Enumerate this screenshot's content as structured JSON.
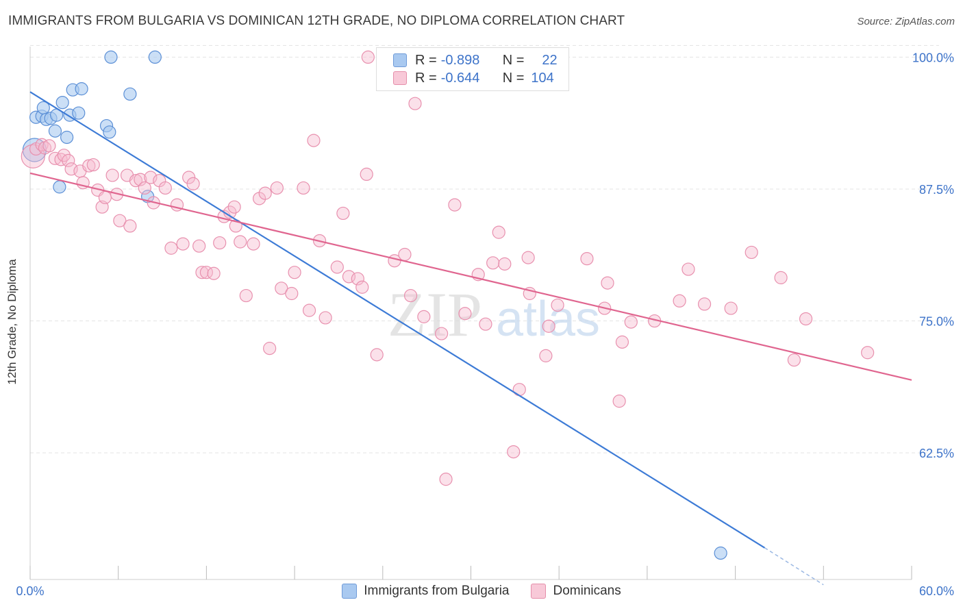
{
  "title": "IMMIGRANTS FROM BULGARIA VS DOMINICAN 12TH GRADE, NO DIPLOMA CORRELATION CHART",
  "source": "Source: ZipAtlas.com",
  "watermark": {
    "zip": "ZIP",
    "atlas": "atlas"
  },
  "legend_top": {
    "rows": [
      {
        "r_label": "R =",
        "r_value": "-0.898",
        "n_label": "N =",
        "n_value": "22"
      },
      {
        "r_label": "R =",
        "r_value": "-0.644",
        "n_label": "N =",
        "n_value": "104"
      }
    ]
  },
  "colors": {
    "blue": "#3d7bd6",
    "blue_fill": "#a9c9f0",
    "pink": "#e0658f",
    "pink_fill": "#f5b8cc",
    "axis_label": "#3d73c9",
    "grid": "#e3e3e3"
  },
  "chart_data": {
    "type": "scatter",
    "title": "IMMIGRANTS FROM BULGARIA VS DOMINICAN 12TH GRADE, NO DIPLOMA CORRELATION CHART",
    "xlabel": "",
    "ylabel": "12th Grade, No Diploma",
    "xlim": [
      0,
      60
    ],
    "ylim": [
      50.5,
      101
    ],
    "x_tick_labels": [
      "0.0%",
      "60.0%"
    ],
    "y_ticks": [
      62.5,
      75.0,
      87.5,
      100.0
    ],
    "y_tick_labels": [
      "62.5%",
      "75.0%",
      "87.5%",
      "100.0%"
    ],
    "grid": true,
    "legend_placement": "bottom",
    "series": [
      {
        "name": "Immigrants from Bulgaria",
        "color": "#3d7bd6",
        "points": [
          [
            0.4,
            94.3
          ],
          [
            0.8,
            94.4
          ],
          [
            0.9,
            95.2
          ],
          [
            1.1,
            94.1
          ],
          [
            1.4,
            94.2
          ],
          [
            1.7,
            93.0
          ],
          [
            1.8,
            94.5
          ],
          [
            2.0,
            87.7
          ],
          [
            2.2,
            95.7
          ],
          [
            2.5,
            92.4
          ],
          [
            2.7,
            94.5
          ],
          [
            2.9,
            96.9
          ],
          [
            3.3,
            94.7
          ],
          [
            3.5,
            97.0
          ],
          [
            5.2,
            93.5
          ],
          [
            5.4,
            92.9
          ],
          [
            5.5,
            100.0
          ],
          [
            6.8,
            96.5
          ],
          [
            8.0,
            86.8
          ],
          [
            8.5,
            100.0
          ],
          [
            47.0,
            53.0
          ],
          [
            0.3,
            91.2
          ]
        ],
        "trend": {
          "x": [
            0.0,
            50.0
          ],
          "y": [
            96.7,
            53.5
          ],
          "dashed_extension_to": [
            54.0,
            50.0
          ]
        }
      },
      {
        "name": "Dominicans",
        "color": "#e0658f",
        "points": [
          [
            0.2,
            90.6
          ],
          [
            0.4,
            91.3
          ],
          [
            0.8,
            91.7
          ],
          [
            1.0,
            91.4
          ],
          [
            1.3,
            91.6
          ],
          [
            1.7,
            90.4
          ],
          [
            2.1,
            90.3
          ],
          [
            2.3,
            90.7
          ],
          [
            2.6,
            90.2
          ],
          [
            2.8,
            89.4
          ],
          [
            3.4,
            89.2
          ],
          [
            3.6,
            88.1
          ],
          [
            4.0,
            89.7
          ],
          [
            4.3,
            89.8
          ],
          [
            4.6,
            87.4
          ],
          [
            4.9,
            85.8
          ],
          [
            5.1,
            86.7
          ],
          [
            5.6,
            88.8
          ],
          [
            5.9,
            87.0
          ],
          [
            6.1,
            84.5
          ],
          [
            6.6,
            88.8
          ],
          [
            6.8,
            84.0
          ],
          [
            7.2,
            88.3
          ],
          [
            7.5,
            88.4
          ],
          [
            7.8,
            87.6
          ],
          [
            8.2,
            88.6
          ],
          [
            8.4,
            86.2
          ],
          [
            8.8,
            88.3
          ],
          [
            9.2,
            87.6
          ],
          [
            9.6,
            81.9
          ],
          [
            10.0,
            86.0
          ],
          [
            10.4,
            82.3
          ],
          [
            10.8,
            88.6
          ],
          [
            11.1,
            88.0
          ],
          [
            11.5,
            82.1
          ],
          [
            11.7,
            79.6
          ],
          [
            12.0,
            79.6
          ],
          [
            12.5,
            79.5
          ],
          [
            12.9,
            82.4
          ],
          [
            13.2,
            84.9
          ],
          [
            13.6,
            85.3
          ],
          [
            13.9,
            85.8
          ],
          [
            14.0,
            84.0
          ],
          [
            14.3,
            82.5
          ],
          [
            14.7,
            77.4
          ],
          [
            15.2,
            82.3
          ],
          [
            15.6,
            86.6
          ],
          [
            16.0,
            87.1
          ],
          [
            16.3,
            72.4
          ],
          [
            16.8,
            87.6
          ],
          [
            17.1,
            78.1
          ],
          [
            17.8,
            77.6
          ],
          [
            18.0,
            79.6
          ],
          [
            18.6,
            87.6
          ],
          [
            19.0,
            76.0
          ],
          [
            19.3,
            92.1
          ],
          [
            19.7,
            82.6
          ],
          [
            20.1,
            75.3
          ],
          [
            20.9,
            80.1
          ],
          [
            21.3,
            85.2
          ],
          [
            21.7,
            79.2
          ],
          [
            22.3,
            79.0
          ],
          [
            22.6,
            78.2
          ],
          [
            22.9,
            88.9
          ],
          [
            23.0,
            100.0
          ],
          [
            23.6,
            71.8
          ],
          [
            24.2,
            100.0
          ],
          [
            24.8,
            80.7
          ],
          [
            25.5,
            81.3
          ],
          [
            25.9,
            77.4
          ],
          [
            26.2,
            95.6
          ],
          [
            26.8,
            75.4
          ],
          [
            28.0,
            73.8
          ],
          [
            28.3,
            60.0
          ],
          [
            28.9,
            86.0
          ],
          [
            29.6,
            75.7
          ],
          [
            30.5,
            79.4
          ],
          [
            31.0,
            74.7
          ],
          [
            31.5,
            80.5
          ],
          [
            31.9,
            83.4
          ],
          [
            32.3,
            80.4
          ],
          [
            32.9,
            62.6
          ],
          [
            33.3,
            68.5
          ],
          [
            33.9,
            81.0
          ],
          [
            34.0,
            77.6
          ],
          [
            35.1,
            71.7
          ],
          [
            35.3,
            74.5
          ],
          [
            35.9,
            76.5
          ],
          [
            37.9,
            80.9
          ],
          [
            39.1,
            76.2
          ],
          [
            39.3,
            78.6
          ],
          [
            40.1,
            67.4
          ],
          [
            40.3,
            73.0
          ],
          [
            40.9,
            74.9
          ],
          [
            42.5,
            75.0
          ],
          [
            44.2,
            76.9
          ],
          [
            44.8,
            79.9
          ],
          [
            45.9,
            76.6
          ],
          [
            47.7,
            76.2
          ],
          [
            49.1,
            81.5
          ],
          [
            51.1,
            79.1
          ],
          [
            52.0,
            71.3
          ],
          [
            52.8,
            75.2
          ],
          [
            57.0,
            72.0
          ]
        ],
        "trend": {
          "x": [
            0.0,
            60.0
          ],
          "y": [
            89.0,
            69.4
          ]
        }
      }
    ]
  }
}
